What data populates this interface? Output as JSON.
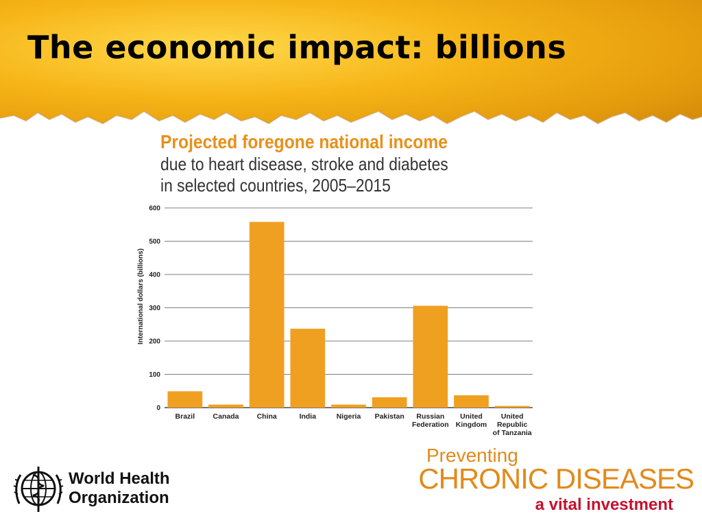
{
  "slide": {
    "title": "The economic impact: billions"
  },
  "chart_data": {
    "type": "bar",
    "title": "Projected foregone national income",
    "subtitle_lines": [
      "due to heart disease, stroke and diabetes",
      "in selected countries, 2005–2015"
    ],
    "ylabel": "International dollars (billions)",
    "xlabel": "",
    "ylim": [
      0,
      600
    ],
    "yticks": [
      0,
      100,
      200,
      300,
      400,
      500,
      600
    ],
    "grid": true,
    "bar_color": "#f0a020",
    "categories": [
      [
        "Brazil"
      ],
      [
        "Canada"
      ],
      [
        "China"
      ],
      [
        "India"
      ],
      [
        "Nigeria"
      ],
      [
        "Pakistan"
      ],
      [
        "Russian",
        "Federation"
      ],
      [
        "United",
        "Kingdom"
      ],
      [
        "United",
        "Republic",
        "of Tanzania"
      ]
    ],
    "values": [
      49,
      9,
      558,
      237,
      9,
      31,
      306,
      37,
      5
    ]
  },
  "logos": {
    "who_line1": "World Health",
    "who_line2": "Organization",
    "campaign_line1": "Preventing",
    "campaign_line2": "CHRONIC DISEASES",
    "campaign_line3": "a vital investment"
  },
  "colors": {
    "header_gold": "#f6b417",
    "chart_title_orange": "#e8901a",
    "campaign_orange": "#e28a1a",
    "campaign_red": "#c8102e"
  }
}
